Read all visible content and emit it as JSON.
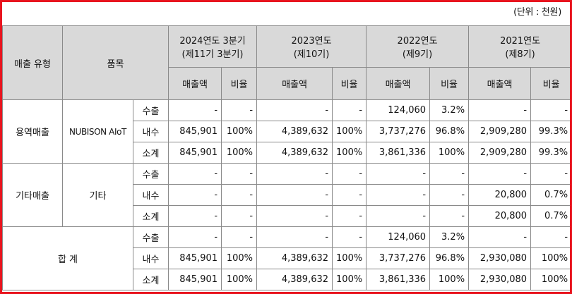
{
  "unit_label": "(단위 : 천원)",
  "headers": {
    "type": "매출 유형",
    "item": "품목",
    "periods": [
      {
        "line1": "2024연도 3분기",
        "line2": "(제11기 3분기)"
      },
      {
        "line1": "2023연도",
        "line2": "(제10기)"
      },
      {
        "line1": "2022연도",
        "line2": "(제9기)"
      },
      {
        "line1": "2021연도",
        "line2": "(제8기)"
      }
    ],
    "amount": "매출액",
    "ratio": "비율"
  },
  "groups": [
    {
      "type": "용역매출",
      "item": "NUBISON AIoT",
      "rows": [
        {
          "kind": "수출",
          "values": [
            "-",
            "-",
            "-",
            "-",
            "124,060",
            "3.2%",
            "-",
            "-"
          ]
        },
        {
          "kind": "내수",
          "values": [
            "845,901",
            "100%",
            "4,389,632",
            "100%",
            "3,737,276",
            "96.8%",
            "2,909,280",
            "99.3%"
          ]
        },
        {
          "kind": "소계",
          "values": [
            "845,901",
            "100%",
            "4,389,632",
            "100%",
            "3,861,336",
            "100%",
            "2,909,280",
            "99.3%"
          ]
        }
      ]
    },
    {
      "type": "기타매출",
      "item": "기타",
      "rows": [
        {
          "kind": "수출",
          "values": [
            "-",
            "-",
            "-",
            "-",
            "-",
            "-",
            "-",
            "-"
          ]
        },
        {
          "kind": "내수",
          "values": [
            "-",
            "-",
            "-",
            "-",
            "-",
            "-",
            "20,800",
            "0.7%"
          ]
        },
        {
          "kind": "소계",
          "values": [
            "-",
            "-",
            "-",
            "-",
            "-",
            "-",
            "20,800",
            "0.7%"
          ]
        }
      ]
    },
    {
      "type": "합 계",
      "rows": [
        {
          "kind": "수출",
          "values": [
            "-",
            "-",
            "-",
            "-",
            "124,060",
            "3.2%",
            "-",
            "-"
          ]
        },
        {
          "kind": "내수",
          "values": [
            "845,901",
            "100%",
            "4,389,632",
            "100%",
            "3,737,276",
            "96.8%",
            "2,930,080",
            "100%"
          ]
        },
        {
          "kind": "소계",
          "values": [
            "845,901",
            "100%",
            "4,389,632",
            "100%",
            "3,861,336",
            "100%",
            "2,930,080",
            "100%"
          ]
        }
      ]
    }
  ]
}
